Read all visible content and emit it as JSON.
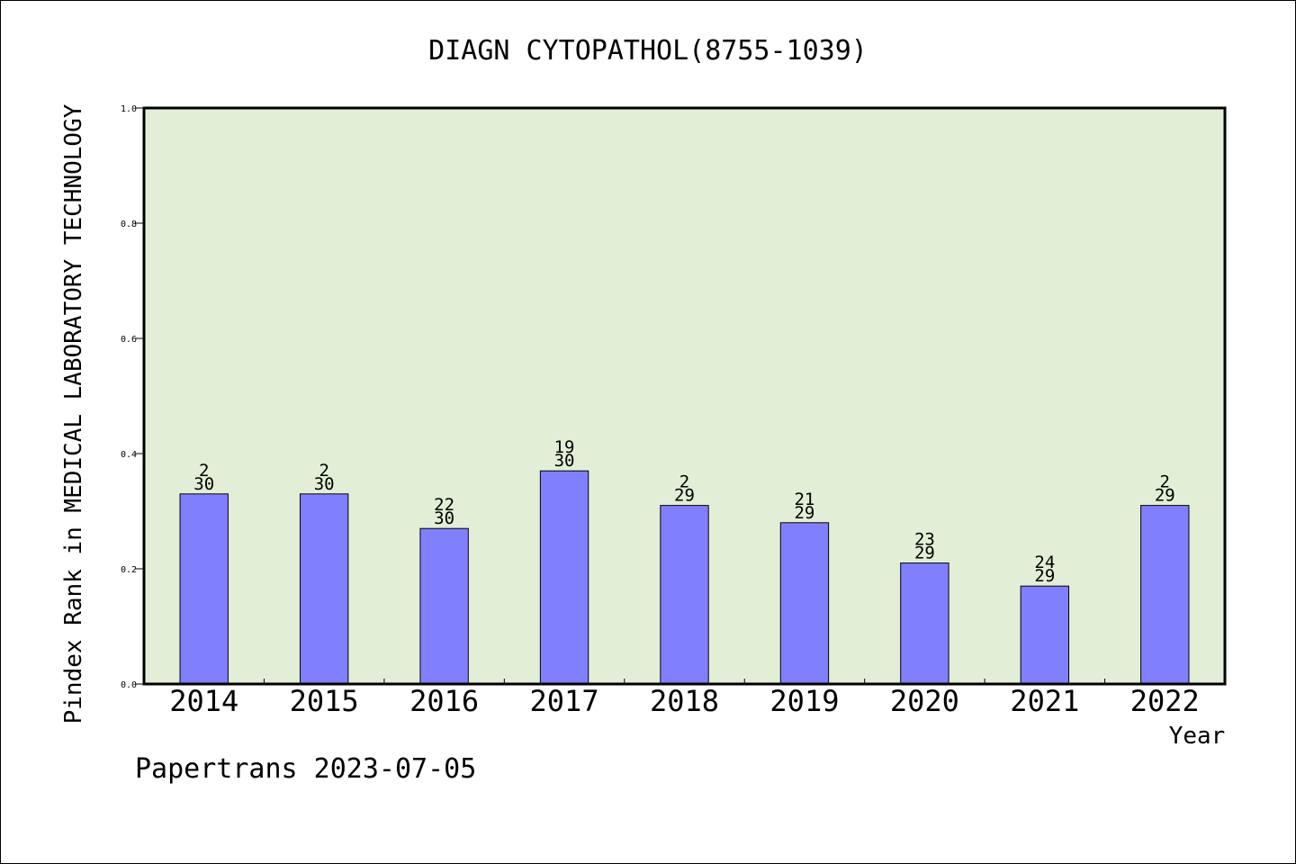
{
  "chart_data": {
    "type": "bar",
    "title": "DIAGN CYTOPATHOL(8755-1039)",
    "xlabel": "Year",
    "ylabel": "Pindex Rank in MEDICAL LABORATORY TECHNOLOGY",
    "categories": [
      "2014",
      "2015",
      "2016",
      "2017",
      "2018",
      "2019",
      "2020",
      "2021",
      "2022"
    ],
    "values": [
      0.33,
      0.33,
      0.27,
      0.37,
      0.31,
      0.28,
      0.21,
      0.17,
      0.31
    ],
    "rank_labels": [
      "2",
      "2",
      "22",
      "19",
      "2",
      "21",
      "23",
      "24",
      "2"
    ],
    "total_labels": [
      "30",
      "30",
      "30",
      "30",
      "29",
      "29",
      "29",
      "29",
      "29"
    ],
    "ylim": [
      0,
      1.0
    ],
    "yticks": [
      "0.0",
      "0.2",
      "0.4",
      "0.6",
      "0.8",
      "1.0"
    ],
    "ytick_values": [
      0.0,
      0.2,
      0.4,
      0.6,
      0.8,
      1.0
    ],
    "grid": false,
    "colors": {
      "plot_background": "#e2efd6",
      "bar_fill": "#8080ff",
      "bar_stroke": "#000000"
    }
  },
  "footer": {
    "text": "Papertrans 2023-07-05"
  }
}
